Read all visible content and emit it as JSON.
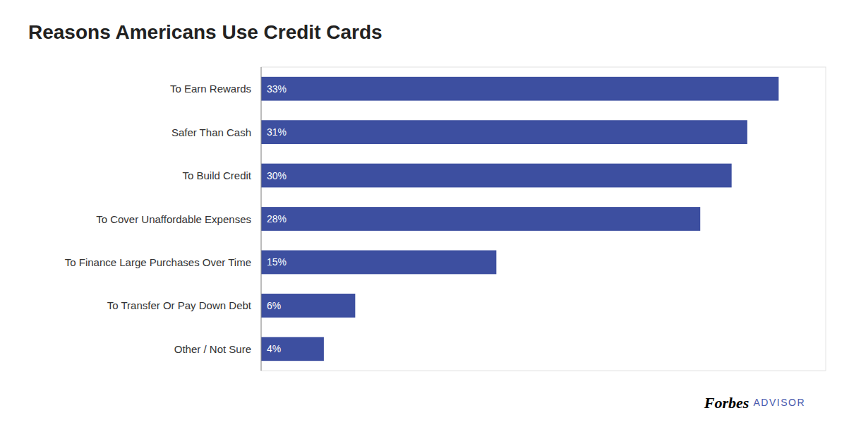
{
  "chart_data": {
    "type": "bar",
    "orientation": "horizontal",
    "title": "Reasons Americans Use Credit Cards",
    "categories": [
      "To Earn Rewards",
      "Safer Than Cash",
      "To Build Credit",
      "To Cover Unaffordable Expenses",
      "To Finance Large Purchases Over Time",
      "To Transfer Or Pay Down Debt",
      "Other / Not Sure"
    ],
    "values": [
      33,
      31,
      30,
      28,
      15,
      6,
      4
    ],
    "value_labels": [
      "33%",
      "31%",
      "30%",
      "28%",
      "15%",
      "6%",
      "4%"
    ],
    "color": "#3d4fa0",
    "xlim": [
      0,
      36
    ],
    "grid": false,
    "data_labels": true,
    "tick_labels": "y",
    "annotations": [
      "Forbes",
      "ADVISOR"
    ]
  }
}
